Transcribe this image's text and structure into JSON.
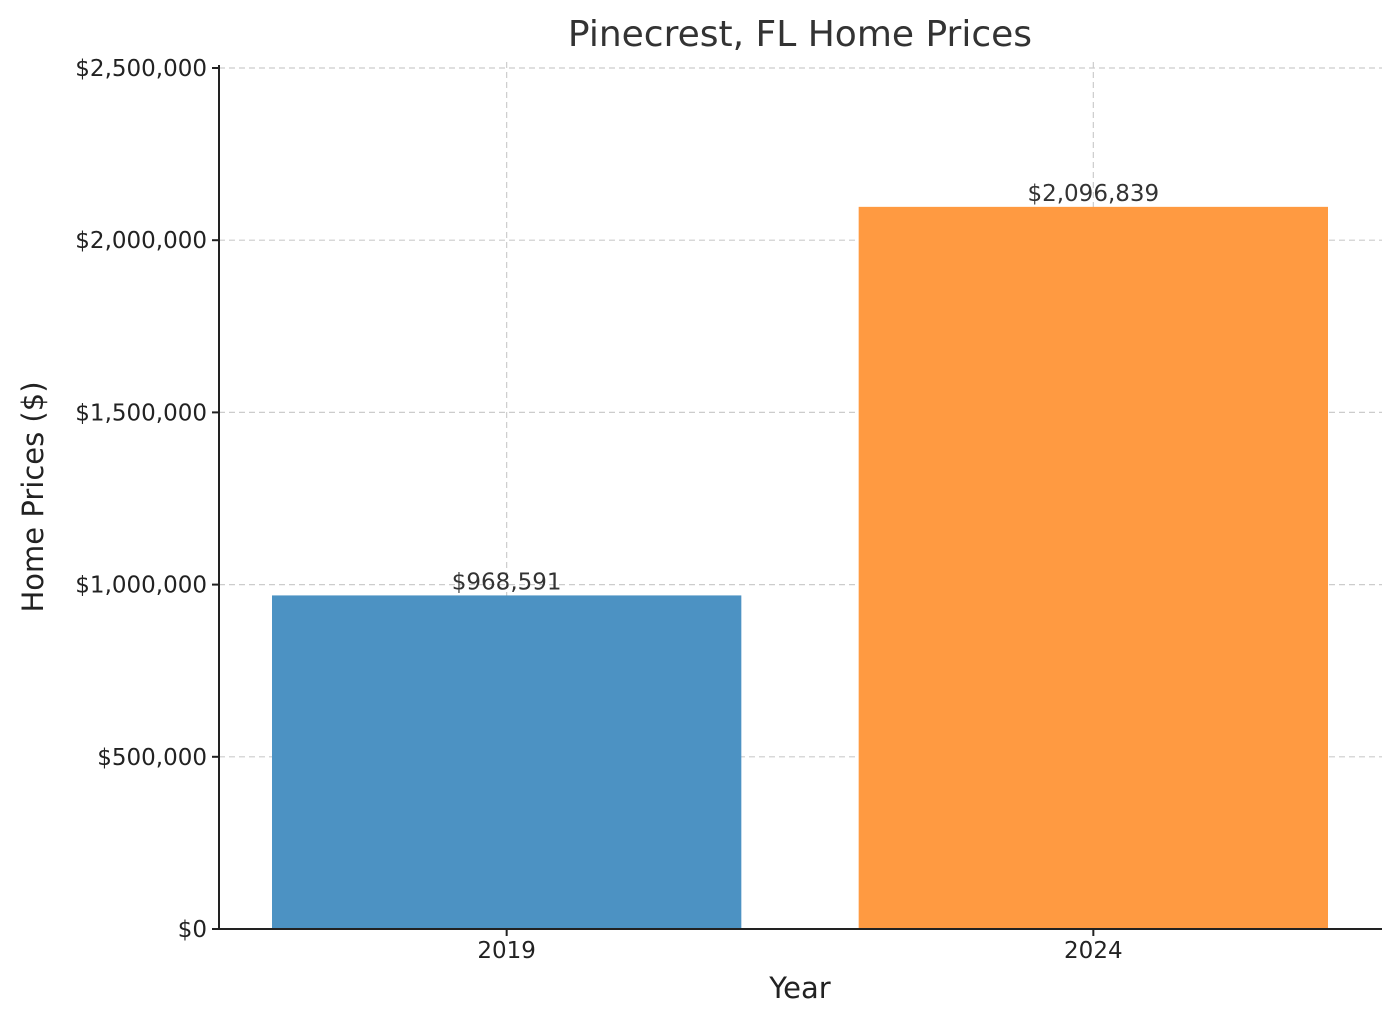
{
  "chart_data": {
    "type": "bar",
    "title": "Pinecrest, FL Home Prices",
    "xlabel": "Year",
    "ylabel": "Home Prices ($)",
    "categories": [
      "2019",
      "2024"
    ],
    "values": [
      968591,
      2096839
    ],
    "value_labels": [
      "$968,591",
      "$2,096,839"
    ],
    "colors": [
      "#4c92c3",
      "#ff9a41"
    ],
    "ylim": [
      0,
      2500000
    ],
    "yticks": [
      0,
      500000,
      1000000,
      1500000,
      2000000,
      2500000
    ],
    "ytick_labels": [
      "$0",
      "$500,000",
      "$1,000,000",
      "$1,500,000",
      "$2,000,000",
      "$2,500,000"
    ],
    "grid": true,
    "legend": false
  }
}
